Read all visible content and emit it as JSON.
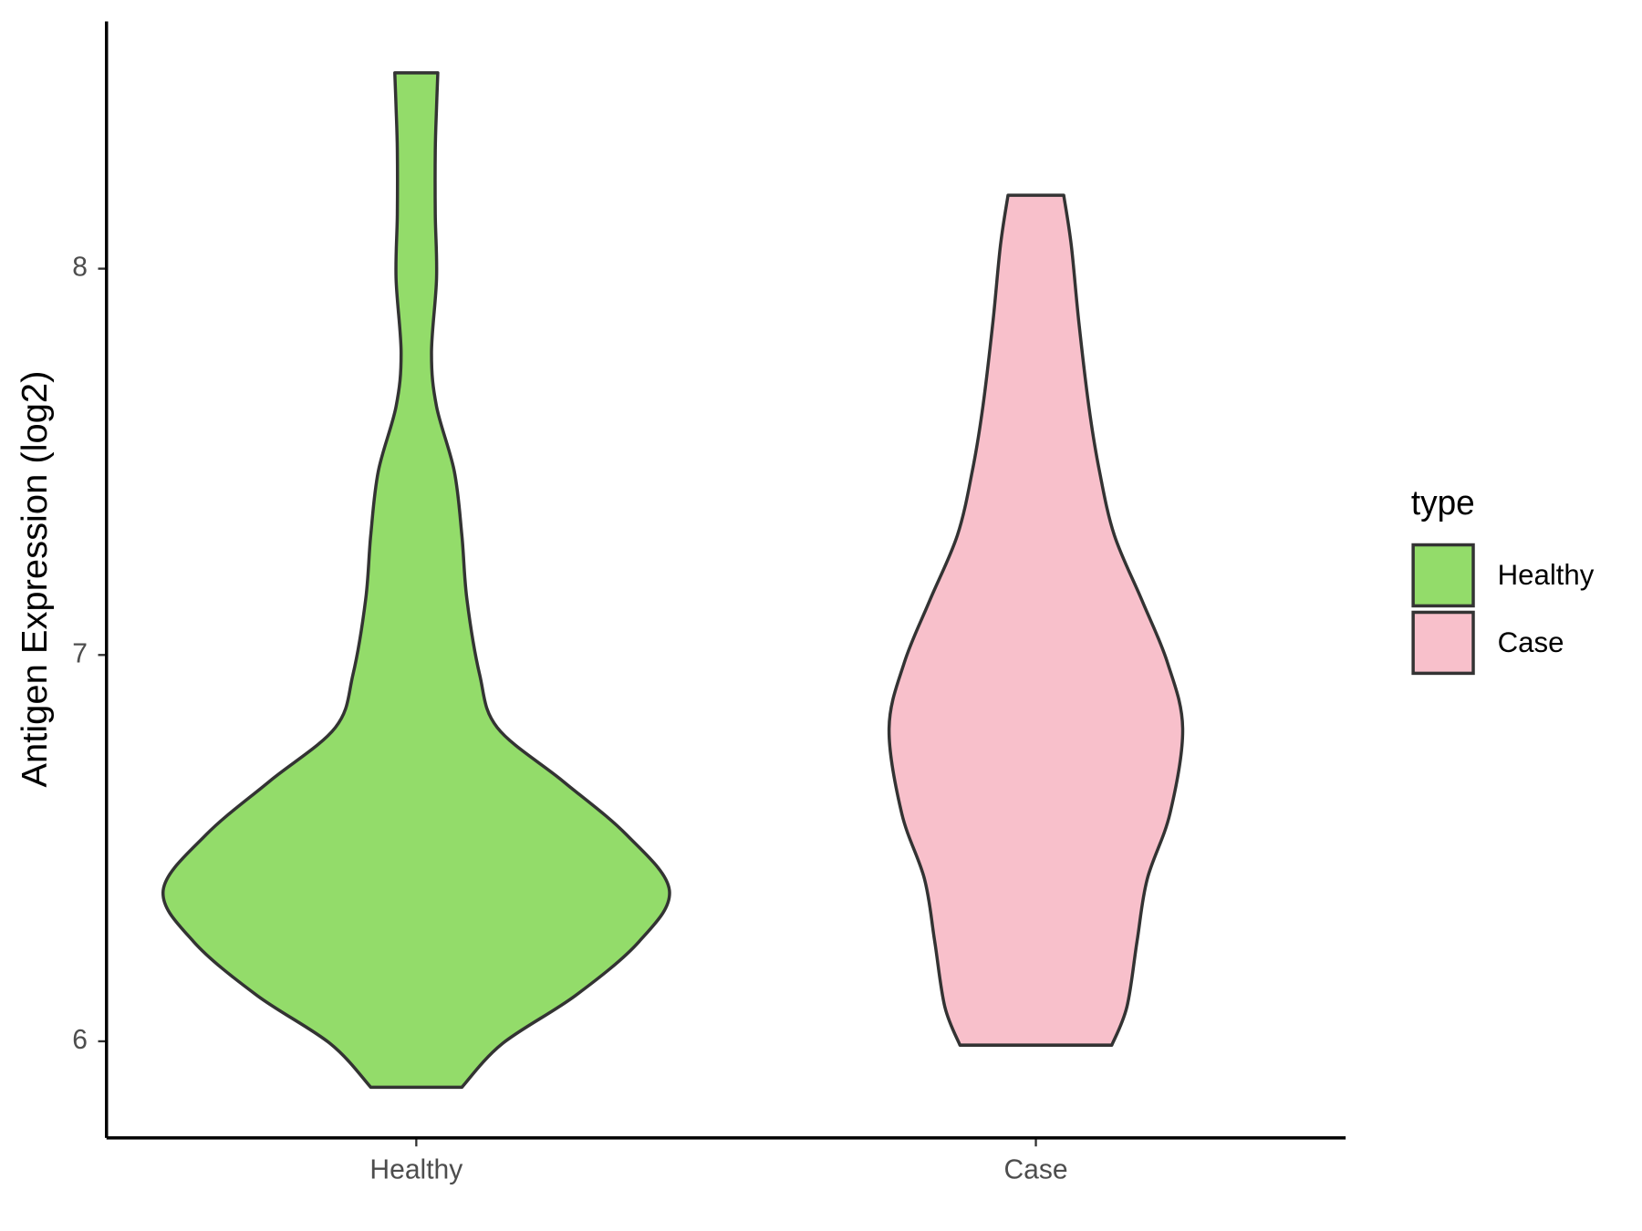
{
  "chart_data": {
    "type": "violin",
    "y_label": "Antigen Expression (log2)",
    "legend_title": "type",
    "legend": "right",
    "categories": [
      "Healthy",
      "Case"
    ],
    "ylim": [
      5.75,
      8.64
    ],
    "yticks": [
      6,
      7,
      8
    ],
    "series": [
      {
        "name": "Healthy",
        "color": "#93dc6a",
        "y": [
          5.881,
          5.994,
          6.119,
          6.258,
          6.391,
          6.535,
          6.673,
          6.812,
          6.95,
          7.144,
          7.31,
          7.476,
          7.643,
          7.781,
          7.975,
          8.141,
          8.307,
          8.418,
          8.507
        ],
        "density": [
          0.18,
          0.34,
          0.63,
          0.88,
          1.0,
          0.83,
          0.58,
          0.32,
          0.25,
          0.2,
          0.18,
          0.15,
          0.08,
          0.06,
          0.08,
          0.075,
          0.075,
          0.08,
          0.085
        ]
      },
      {
        "name": "Case",
        "color": "#f8c0cb",
        "y": [
          5.99,
          6.09,
          6.26,
          6.42,
          6.59,
          6.81,
          6.98,
          7.14,
          7.31,
          7.48,
          7.64,
          7.86,
          8.06,
          8.19
        ],
        "density": [
          0.3,
          0.36,
          0.4,
          0.44,
          0.53,
          0.58,
          0.52,
          0.42,
          0.31,
          0.25,
          0.21,
          0.17,
          0.14,
          0.11
        ]
      }
    ]
  }
}
